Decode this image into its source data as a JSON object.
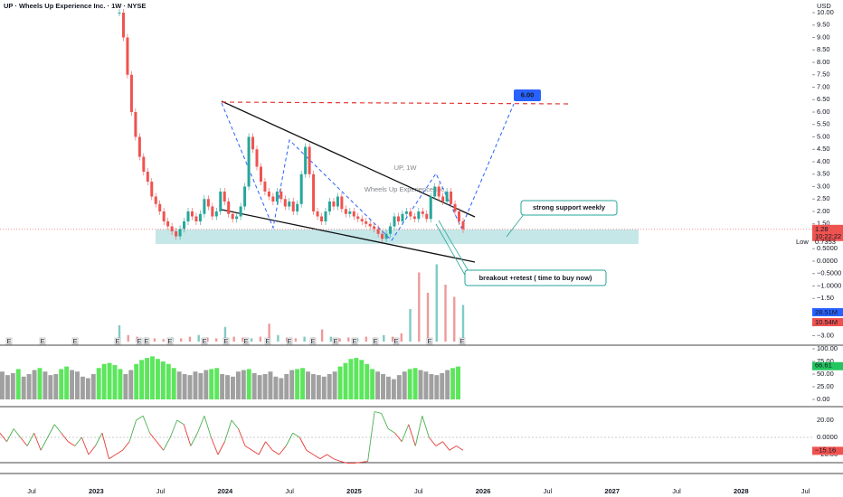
{
  "header": {
    "title": "UP · Wheels Up Experience Inc. · 1W · NYSE",
    "watermark": "UP, 1W",
    "watermark_sub": "Wheels Up Experience Inc."
  },
  "price_axis": {
    "unit": "USD",
    "ticks": [
      {
        "value": 10,
        "label": "10.00"
      },
      {
        "value": 9.5,
        "label": "9.50"
      },
      {
        "value": 9,
        "label": "9.00"
      },
      {
        "value": 8.5,
        "label": "8.50"
      },
      {
        "value": 8,
        "label": "8.00"
      },
      {
        "value": 7.5,
        "label": "7.50"
      },
      {
        "value": 7,
        "label": "7.00"
      },
      {
        "value": 6.5,
        "label": "6.50"
      },
      {
        "value": 6,
        "label": "6.00"
      },
      {
        "value": 5.5,
        "label": "5.50"
      },
      {
        "value": 5,
        "label": "5.00"
      },
      {
        "value": 4.5,
        "label": "4.50"
      },
      {
        "value": 4,
        "label": "4.00"
      },
      {
        "value": 3.5,
        "label": "3.50"
      },
      {
        "value": 3,
        "label": "3.00"
      },
      {
        "value": 2.5,
        "label": "2.50"
      },
      {
        "value": 2,
        "label": "2.00"
      },
      {
        "value": 1.5,
        "label": "1.50"
      },
      {
        "value": 0.5,
        "label": "0.5000"
      },
      {
        "value": 0,
        "label": "0.0000"
      },
      {
        "value": -0.5,
        "label": "−0.5000"
      },
      {
        "value": -1,
        "label": "−1.0000"
      },
      {
        "value": -1.5,
        "label": "−1.50"
      },
      {
        "value": -3,
        "label": "−3.00"
      }
    ],
    "last": {
      "value": 1.28,
      "label": "1.28"
    },
    "countdown": "10:22:22",
    "low_label": "Low",
    "low": {
      "value": 0.7353,
      "label": "0.7353"
    }
  },
  "price_closes": [
    10,
    9,
    7.5,
    6,
    5,
    4.2,
    3.6,
    3.2,
    2.6,
    2.3,
    2.0,
    1.6,
    1.4,
    1.2,
    1.0,
    1.3,
    1.6,
    2.0,
    1.8,
    1.6,
    1.9,
    2.5,
    2.2,
    1.8,
    2.0,
    2.8,
    2.4,
    1.9,
    1.7,
    1.8,
    2.2,
    3.0,
    5.0,
    4.5,
    3.8,
    3.2,
    2.8,
    2.6,
    2.4,
    2.8,
    2.5,
    2.2,
    2.4,
    2.0,
    2.3,
    3.5,
    4.6,
    3.5,
    2.0,
    1.8,
    1.6,
    2.0,
    2.4,
    2.2,
    2.6,
    2.1,
    1.9,
    2.0,
    1.8,
    1.7,
    1.6,
    1.5,
    1.4,
    1.3,
    1.1,
    0.9,
    1.1,
    1.4,
    1.8,
    1.6,
    1.9,
    2.0,
    1.8,
    1.7,
    2.0,
    1.9,
    1.7,
    2.6,
    3.0,
    2.6,
    2.4,
    2.8,
    2.3,
    2.0,
    1.6,
    1.28
  ],
  "volume": {
    "values": [
      20,
      8,
      6,
      5,
      4,
      3,
      5,
      4,
      6,
      8,
      5,
      4,
      18,
      6,
      5,
      4,
      6,
      22,
      8,
      5,
      4,
      6,
      5,
      15,
      6,
      4,
      5,
      4,
      6,
      5,
      8,
      6,
      10,
      40,
      85,
      60,
      95,
      70,
      55,
      45
    ],
    "tag_high": "28.51M",
    "tag_low": "10.54M"
  },
  "events": [
    "E",
    "E",
    "E",
    "E",
    "E",
    "E",
    "E",
    "E",
    "E",
    "E",
    "E",
    "E",
    "E",
    "E",
    "E",
    "E",
    "E",
    "E",
    "E"
  ],
  "strength": {
    "values": [
      55,
      48,
      52,
      60,
      45,
      50,
      58,
      62,
      55,
      48,
      50,
      60,
      65,
      58,
      55,
      45,
      42,
      50,
      62,
      70,
      72,
      68,
      60,
      50,
      58,
      70,
      78,
      82,
      85,
      80,
      75,
      70,
      62,
      55,
      50,
      48,
      55,
      52,
      58,
      60,
      62,
      50,
      48,
      45,
      55,
      58,
      60,
      52,
      48,
      50,
      55,
      45,
      42,
      50,
      58,
      60,
      62,
      55,
      50,
      48,
      45,
      50,
      55,
      65,
      72,
      80,
      82,
      78,
      70,
      60,
      55,
      50,
      45,
      40,
      48,
      55,
      60,
      62,
      58,
      55,
      50,
      48,
      52,
      58,
      62,
      65
    ],
    "ticks": [
      {
        "value": 100,
        "label": "100.00"
      },
      {
        "value": 75,
        "label": "75.00"
      },
      {
        "value": 50,
        "label": "50.00"
      },
      {
        "value": 25,
        "label": "25.00"
      },
      {
        "value": 0,
        "label": "0.00"
      }
    ],
    "last": {
      "value": 66.61,
      "label": "66.61"
    }
  },
  "oscillator": {
    "values": [
      5,
      -5,
      10,
      0,
      -10,
      5,
      -15,
      0,
      15,
      5,
      -5,
      -10,
      0,
      -20,
      -10,
      5,
      -25,
      -20,
      -15,
      -5,
      20,
      25,
      5,
      -5,
      -15,
      0,
      20,
      15,
      -10,
      5,
      25,
      0,
      -20,
      -5,
      20,
      10,
      -10,
      -15,
      -20,
      -5,
      -15,
      -20,
      -10,
      5,
      0,
      -15,
      -20,
      -25,
      -20,
      -25,
      -28,
      -30,
      -30,
      -29,
      -28,
      30,
      28,
      10,
      5,
      -5,
      15,
      -10,
      25,
      0,
      -10,
      -5,
      -15,
      -10,
      -15
    ],
    "ticks": [
      {
        "value": 20,
        "label": "20.00"
      },
      {
        "value": 0,
        "label": "0.0000"
      },
      {
        "value": -20,
        "label": "−20.00"
      }
    ],
    "last": {
      "value": -15.16,
      "label": "−15.16"
    }
  },
  "time_axis": [
    "Jul",
    "2023",
    "Jul",
    "2024",
    "Jul",
    "2025",
    "Jul",
    "2026",
    "Jul",
    "2027",
    "Jul",
    "2028",
    "Jul"
  ],
  "annotations": {
    "target": {
      "value": 6,
      "label": "6.00"
    },
    "support": "strong support weekly",
    "breakout": "breakout +retest ( time to buy now)"
  }
}
